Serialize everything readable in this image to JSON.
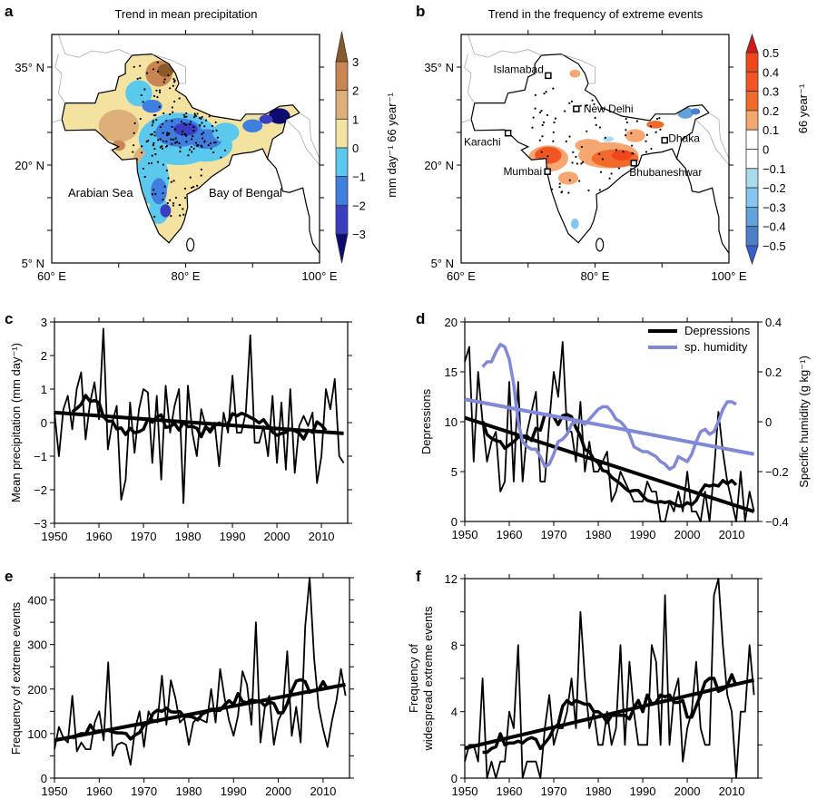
{
  "panels": {
    "a": {
      "letter": "a",
      "title": "Trend in mean precipitation",
      "colorbar_label": "mm day⁻¹ 66 year⁻¹",
      "sea_labels": [
        "Arabian Sea",
        "Bay of Bengal"
      ]
    },
    "b": {
      "letter": "b",
      "title": "Trend in the frequency of extreme events",
      "colorbar_label": "66 year⁻¹"
    },
    "c": {
      "letter": "c",
      "ylabel": "Mean precipitation (mm day⁻¹)"
    },
    "d": {
      "letter": "d",
      "ylabel": "Depressions",
      "ylabel_right": "Specific humidity (g kg⁻¹)",
      "legend": [
        "Depressions",
        "sp. humidity"
      ]
    },
    "e": {
      "letter": "e",
      "ylabel": "Frequency of extreme events"
    },
    "f": {
      "letter": "f",
      "ylabel_line1": "Frequency of",
      "ylabel_line2": "widespread extreme events"
    }
  },
  "map_axes": {
    "lat_ticks": [
      "35° N",
      "20° N",
      "5° N"
    ],
    "lon_ticks": [
      "60° E",
      "80° E",
      "100° E"
    ]
  },
  "chart_data": [
    {
      "id": "a",
      "type": "heatmap",
      "title": "Trend in mean precipitation",
      "colorbar": {
        "label": "mm day⁻¹ 66 year⁻¹",
        "ticks": [
          "3",
          "2",
          "1",
          "0",
          "−1",
          "−2",
          "−3"
        ],
        "colors": [
          "#8b5a2b",
          "#c98552",
          "#ddb07a",
          "#f3e2a0",
          "#5bc8ee",
          "#3f7fe0",
          "#3a3fc2",
          "#0b0b72"
        ]
      },
      "extent": {
        "lon": [
          60,
          100
        ],
        "lat": [
          5,
          40
        ]
      },
      "stippling": "significant trends"
    },
    {
      "id": "b",
      "type": "heatmap",
      "title": "Trend in the frequency of extreme events",
      "colorbar": {
        "label": "66 year⁻¹",
        "ticks": [
          "0.5",
          "0.4",
          "0.3",
          "0.2",
          "0.1",
          "0",
          "−0.1",
          "−0.2",
          "−0.3",
          "−0.4",
          "−0.5"
        ],
        "colors": [
          "#d11a1a",
          "#f0461c",
          "#f25424",
          "#f26a2a",
          "#f6a670",
          "#ffffff",
          "#ffffff",
          "#a8dcec",
          "#86c6ee",
          "#62a2dc",
          "#4d7ec8",
          "#3a5fc8"
        ]
      },
      "extent": {
        "lon": [
          60,
          100
        ],
        "lat": [
          5,
          40
        ]
      },
      "cities": [
        {
          "name": "Islamabad",
          "lon": 73.0,
          "lat": 33.7
        },
        {
          "name": "New Delhi",
          "lon": 77.2,
          "lat": 28.6
        },
        {
          "name": "Karachi",
          "lon": 67.0,
          "lat": 24.9
        },
        {
          "name": "Dhaka",
          "lon": 90.4,
          "lat": 23.8
        },
        {
          "name": "Mumbai",
          "lon": 72.9,
          "lat": 19.0
        },
        {
          "name": "Bhubaneshwar",
          "lon": 85.8,
          "lat": 20.3
        }
      ]
    },
    {
      "id": "c",
      "type": "line",
      "xlim": [
        1950,
        2015
      ],
      "ylim": [
        -3,
        3
      ],
      "xticks": [
        1950,
        1960,
        1970,
        1980,
        1990,
        2000,
        2010
      ],
      "yticks": [
        -3,
        -2,
        -1,
        0,
        1,
        2,
        3
      ],
      "yminor": [],
      "ylabel": "Mean precipitation (mm day⁻¹)",
      "x_start": 1950,
      "values": [
        0.3,
        -1.0,
        0.4,
        0.8,
        -0.2,
        1.0,
        1.5,
        -0.5,
        0.6,
        1.2,
        0.1,
        2.8,
        -0.8,
        0.0,
        0.5,
        -2.3,
        -1.7,
        0.6,
        -0.9,
        0.4,
        1.0,
        0.9,
        -1.2,
        0.8,
        -1.7,
        1.1,
        -0.3,
        0.5,
        1.0,
        -2.4,
        1.1,
        -0.3,
        -1.0,
        0.4,
        -0.1,
        -0.2,
        0.0,
        -1.3,
        0.3,
        -0.3,
        1.4,
        -0.3,
        -0.3,
        0.3,
        2.6,
        -0.6,
        -0.6,
        -0.1,
        -1.0,
        0.8,
        -1.2,
        0.6,
        -1.4,
        1.0,
        -1.5,
        -0.1,
        0.2,
        -0.1,
        0.3,
        -1.8,
        -1.0,
        1.0,
        0.4,
        1.3,
        -1.0,
        -1.2
      ],
      "trend": [
        0.3,
        -0.32
      ],
      "smoothed": "9-year running mean"
    },
    {
      "id": "d",
      "type": "line",
      "xlim": [
        1950,
        2015
      ],
      "ylim": [
        0,
        20
      ],
      "ylim_right": [
        -0.4,
        0.4
      ],
      "xticks": [
        1950,
        1960,
        1970,
        1980,
        1990,
        2000,
        2010
      ],
      "yticks": [
        0,
        5,
        10,
        15,
        20
      ],
      "yticks_right": [
        -0.4,
        -0.2,
        0,
        0.2,
        0.4
      ],
      "ylabel": "Depressions",
      "ylabel_right": "Specific humidity (g kg⁻¹)",
      "legend_position": "top-right",
      "series": [
        {
          "name": "Depressions",
          "color": "#000000",
          "x_start": 1950,
          "values": [
            16,
            17.5,
            6,
            15,
            10,
            6,
            8,
            9,
            3,
            4,
            14,
            4,
            14,
            4,
            9,
            11,
            13,
            4,
            4,
            10,
            15,
            12.5,
            18,
            9,
            9,
            6,
            12,
            5,
            8,
            5,
            5,
            6,
            7,
            2,
            3,
            5,
            4,
            3,
            2,
            2,
            2,
            4,
            3,
            3,
            0,
            0,
            2,
            1,
            3,
            1,
            5,
            1,
            1,
            0,
            3,
            0,
            5,
            11,
            7,
            4,
            2,
            0,
            5,
            0,
            3,
            1
          ],
          "trend": [
            10.4,
            1.0
          ]
        },
        {
          "name": "sp. humidity",
          "color": "#8088d8",
          "axis": "right",
          "x_start": 1954,
          "values": [
            0.22,
            0.24,
            0.24,
            0.28,
            0.31,
            0.3,
            0.25,
            0.15,
            0.0,
            -0.08,
            -0.1,
            -0.11,
            -0.11,
            -0.14,
            -0.18,
            -0.17,
            -0.13,
            -0.08,
            -0.07,
            -0.05,
            -0.01,
            0.0,
            0.0,
            -0.01,
            0.01,
            0.03,
            0.05,
            0.06,
            0.06,
            0.04,
            0.01,
            0.0,
            -0.02,
            -0.05,
            -0.1,
            -0.11,
            -0.12,
            -0.12,
            -0.13,
            -0.14,
            -0.16,
            -0.17,
            -0.19,
            -0.18,
            -0.14,
            -0.15,
            -0.16,
            -0.13,
            -0.08,
            -0.04,
            -0.03,
            -0.05,
            -0.04,
            0.0,
            0.05,
            0.08,
            0.08,
            0.07
          ],
          "trend": [
            0.09,
            -0.13
          ]
        }
      ]
    },
    {
      "id": "e",
      "type": "line",
      "xlim": [
        1950,
        2015
      ],
      "ylim": [
        0,
        450
      ],
      "xticks": [
        1950,
        1960,
        1970,
        1980,
        1990,
        2000,
        2010
      ],
      "yticks": [
        0,
        100,
        200,
        300,
        400
      ],
      "yminor": [
        50,
        150,
        250,
        350,
        450
      ],
      "ylabel": "Frequency of extreme events",
      "x_start": 1950,
      "values": [
        65,
        115,
        90,
        80,
        185,
        60,
        80,
        65,
        65,
        125,
        150,
        85,
        260,
        50,
        75,
        80,
        75,
        30,
        110,
        150,
        70,
        150,
        130,
        125,
        230,
        120,
        220,
        180,
        125,
        135,
        75,
        125,
        135,
        130,
        125,
        200,
        125,
        245,
        180,
        130,
        95,
        140,
        240,
        210,
        120,
        350,
        80,
        160,
        185,
        75,
        130,
        150,
        285,
        95,
        160,
        80,
        340,
        450,
        270,
        160,
        110,
        70,
        130,
        175,
        245,
        185
      ],
      "trend": [
        85,
        210
      ],
      "smoothed": "9-year running mean"
    },
    {
      "id": "f",
      "type": "line",
      "xlim": [
        1950,
        2015
      ],
      "ylim": [
        0,
        12
      ],
      "xticks": [
        1950,
        1960,
        1970,
        1980,
        1990,
        2000,
        2010
      ],
      "yticks": [
        0,
        4,
        8,
        12
      ],
      "yminor": [
        2,
        6,
        10
      ],
      "ylabel": "Frequency of widespread extreme events",
      "x_start": 1950,
      "values": [
        1,
        2,
        2,
        1,
        6,
        0,
        1,
        0,
        1,
        1,
        4,
        3,
        8,
        0,
        1,
        1,
        1,
        0,
        3,
        5,
        2,
        3,
        3,
        4,
        6,
        3,
        10,
        6,
        3,
        4,
        2,
        2,
        4,
        2,
        3,
        8,
        2,
        7,
        4,
        2,
        2,
        2,
        8,
        7,
        2,
        11,
        2,
        5,
        6,
        1,
        3,
        4,
        7,
        3,
        2,
        2,
        11,
        12,
        8,
        5,
        4,
        0,
        4,
        4,
        8,
        5
      ],
      "trend": [
        1.8,
        5.9
      ],
      "smoothed": "9-year running mean"
    }
  ]
}
